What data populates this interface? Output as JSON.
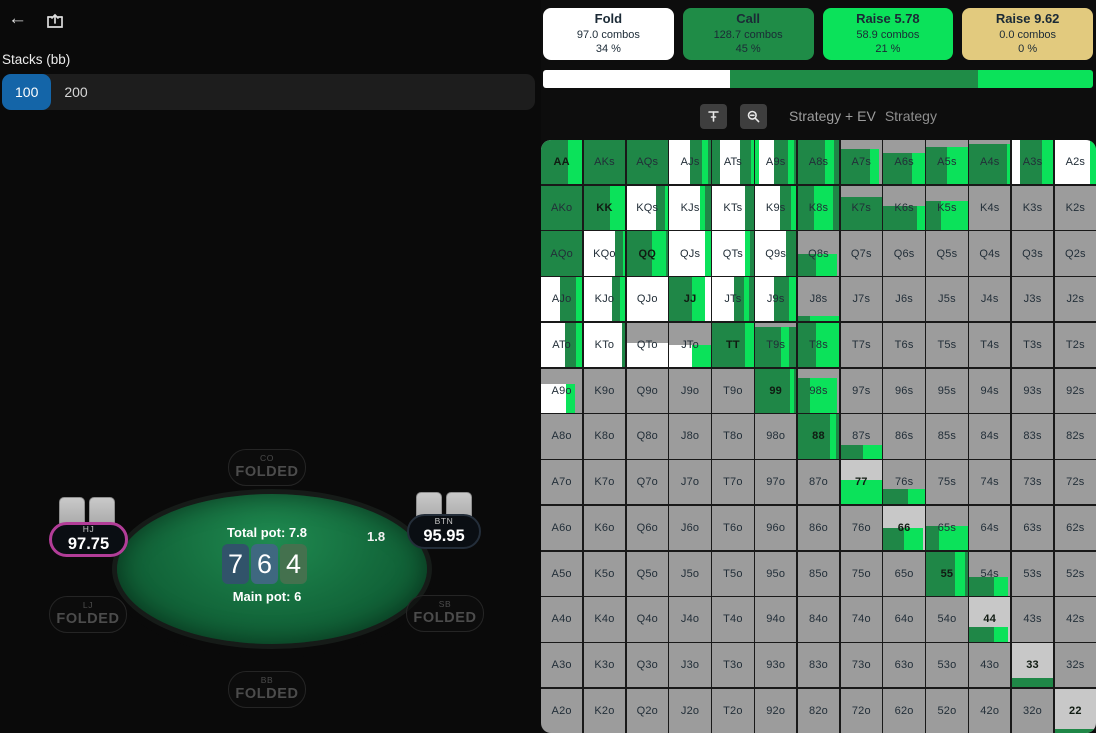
{
  "header": {
    "back_glyph": "←"
  },
  "sidebar": {
    "stacks_label": "Stacks (bb)",
    "stack_options": [
      {
        "label": "100",
        "selected": true
      },
      {
        "label": "200",
        "selected": false
      }
    ]
  },
  "table": {
    "total_pot": "Total pot: 7.8",
    "main_pot": "Main pot: 6",
    "bet": "1.8",
    "board": [
      {
        "rank": "7",
        "color": "#31536a"
      },
      {
        "rank": "6",
        "color": "#3f6880"
      },
      {
        "rank": "4",
        "color": "#44714e"
      }
    ],
    "players": [
      {
        "pos": "CO",
        "line2": "FOLDED",
        "type": "folded",
        "cards": false
      },
      {
        "pos": "HJ",
        "line2": "97.75",
        "type": "hero",
        "cards": true
      },
      {
        "pos": "BTN",
        "line2": "95.95",
        "type": "active",
        "cards": true
      },
      {
        "pos": "LJ",
        "line2": "FOLDED",
        "type": "folded",
        "cards": false
      },
      {
        "pos": "SB",
        "line2": "FOLDED",
        "type": "folded",
        "cards": false
      },
      {
        "pos": "BB",
        "line2": "FOLDED",
        "type": "folded",
        "cards": false
      }
    ]
  },
  "actions": [
    {
      "label": "Fold",
      "combos": "97.0 combos",
      "pct": "34 %",
      "bg": "#ffffff"
    },
    {
      "label": "Call",
      "combos": "128.7 combos",
      "pct": "45 %",
      "bg": "#1f8c47"
    },
    {
      "label": "Raise 5.78",
      "combos": "58.9 combos",
      "pct": "21 %",
      "bg": "#0be25a"
    },
    {
      "label": "Raise 9.62",
      "combos": "0.0 combos",
      "pct": "0 %",
      "bg": "#e2ca7e"
    }
  ],
  "strategy_bar": [
    {
      "color": "#ffffff",
      "pct": 34
    },
    {
      "color": "#1f8c47",
      "pct": 45
    },
    {
      "color": "#0be25a",
      "pct": 21
    }
  ],
  "toolbar": {
    "tabs": [
      {
        "label": "Strategy + EV",
        "active": false
      },
      {
        "label": "Strategy",
        "active": false
      }
    ]
  },
  "matrix": {
    "colors": {
      "f": "#ffffff",
      "c": "#1f8747",
      "r": "#0be25a",
      "g": ""
    },
    "empty_bg": "#9c9c9c",
    "pair_bg": "#c8c8c8",
    "cells": [
      [
        "AA",
        100,
        [
          [
            "c",
            66
          ],
          [
            "r",
            34
          ]
        ]
      ],
      [
        "AKs",
        100,
        [
          [
            "c",
            100
          ]
        ]
      ],
      [
        "AQs",
        100,
        [
          [
            "c",
            100
          ]
        ]
      ],
      [
        "AJs",
        100,
        [
          [
            "f",
            50
          ],
          [
            "c",
            28
          ],
          [
            "r",
            15
          ],
          [
            "c",
            7
          ]
        ]
      ],
      [
        "ATs",
        100,
        [
          [
            "c",
            20
          ],
          [
            "f",
            48
          ],
          [
            "c",
            26
          ],
          [
            "r",
            6
          ]
        ]
      ],
      [
        "A9s",
        100,
        [
          [
            "r",
            10
          ],
          [
            "f",
            37
          ],
          [
            "c",
            32
          ],
          [
            "r",
            16
          ],
          [
            "c",
            5
          ]
        ]
      ],
      [
        "A8s",
        100,
        [
          [
            "c",
            65
          ],
          [
            "r",
            23
          ],
          [
            "c",
            12
          ]
        ]
      ],
      [
        "A7s",
        80,
        [
          [
            "c",
            70
          ],
          [
            "r",
            22
          ],
          [
            "g",
            8
          ]
        ]
      ],
      [
        "A6s",
        70,
        [
          [
            "c",
            70
          ],
          [
            "r",
            30
          ]
        ]
      ],
      [
        "A5s",
        85,
        [
          [
            "c",
            50
          ],
          [
            "r",
            50
          ]
        ]
      ],
      [
        "A4s",
        90,
        [
          [
            "c",
            93
          ],
          [
            "r",
            7
          ]
        ]
      ],
      [
        "A3s",
        100,
        [
          [
            "f",
            20
          ],
          [
            "c",
            53
          ],
          [
            "r",
            27
          ]
        ]
      ],
      [
        "A2s",
        100,
        [
          [
            "f",
            85
          ],
          [
            "r",
            15
          ]
        ]
      ],
      [
        "AKo",
        100,
        [
          [
            "c",
            100
          ]
        ]
      ],
      [
        "KK",
        100,
        [
          [
            "c",
            64
          ],
          [
            "r",
            36
          ]
        ]
      ],
      [
        "KQs",
        100,
        [
          [
            "f",
            70
          ],
          [
            "c",
            22
          ],
          [
            "r",
            8
          ]
        ]
      ],
      [
        "KJs",
        100,
        [
          [
            "f",
            75
          ],
          [
            "r",
            12
          ],
          [
            "c",
            13
          ]
        ]
      ],
      [
        "KTs",
        100,
        [
          [
            "f",
            80
          ],
          [
            "c",
            20
          ]
        ]
      ],
      [
        "K9s",
        100,
        [
          [
            "f",
            60
          ],
          [
            "c",
            26
          ],
          [
            "r",
            14
          ]
        ]
      ],
      [
        "K8s",
        100,
        [
          [
            "c",
            40
          ],
          [
            "r",
            45
          ],
          [
            "c",
            15
          ]
        ]
      ],
      [
        "K7s",
        75,
        [
          [
            "c",
            100
          ]
        ]
      ],
      [
        "K6s",
        55,
        [
          [
            "c",
            80
          ],
          [
            "r",
            20
          ]
        ]
      ],
      [
        "K5s",
        65,
        [
          [
            "c",
            35
          ],
          [
            "r",
            65
          ]
        ]
      ],
      [
        "K4s",
        0,
        []
      ],
      [
        "K3s",
        0,
        []
      ],
      [
        "K2s",
        0,
        []
      ],
      [
        "AQo",
        100,
        [
          [
            "c",
            100
          ]
        ]
      ],
      [
        "KQo",
        100,
        [
          [
            "f",
            76
          ],
          [
            "c",
            19
          ],
          [
            "r",
            5
          ]
        ]
      ],
      [
        "QQ",
        100,
        [
          [
            "c",
            62
          ],
          [
            "r",
            33
          ],
          [
            "c",
            5
          ]
        ]
      ],
      [
        "QJs",
        100,
        [
          [
            "f",
            86
          ],
          [
            "r",
            14
          ]
        ]
      ],
      [
        "QTs",
        100,
        [
          [
            "f",
            80
          ],
          [
            "r",
            12
          ],
          [
            "c",
            8
          ]
        ]
      ],
      [
        "Q9s",
        100,
        [
          [
            "f",
            74
          ],
          [
            "c",
            26
          ]
        ]
      ],
      [
        "Q8s",
        50,
        [
          [
            "c",
            45
          ],
          [
            "r",
            50
          ],
          [
            "g",
            5
          ]
        ]
      ],
      [
        "Q7s",
        0,
        []
      ],
      [
        "Q6s",
        0,
        []
      ],
      [
        "Q5s",
        0,
        []
      ],
      [
        "Q4s",
        0,
        []
      ],
      [
        "Q3s",
        0,
        []
      ],
      [
        "Q2s",
        0,
        []
      ],
      [
        "AJo",
        100,
        [
          [
            "f",
            47
          ],
          [
            "c",
            37
          ],
          [
            "r",
            16
          ]
        ]
      ],
      [
        "KJo",
        100,
        [
          [
            "f",
            68
          ],
          [
            "c",
            20
          ],
          [
            "r",
            12
          ]
        ]
      ],
      [
        "QJo",
        100,
        [
          [
            "f",
            100
          ]
        ]
      ],
      [
        "JJ",
        100,
        [
          [
            "c",
            55
          ],
          [
            "r",
            30
          ],
          [
            "f",
            15
          ]
        ]
      ],
      [
        "JTs",
        100,
        [
          [
            "f",
            53
          ],
          [
            "c",
            23
          ],
          [
            "r",
            12
          ],
          [
            "c",
            12
          ]
        ]
      ],
      [
        "J9s",
        100,
        [
          [
            "f",
            47
          ],
          [
            "c",
            35
          ],
          [
            "r",
            18
          ]
        ]
      ],
      [
        "J8s",
        12,
        [
          [
            "c",
            30
          ],
          [
            "r",
            70
          ]
        ]
      ],
      [
        "J7s",
        0,
        []
      ],
      [
        "J6s",
        0,
        []
      ],
      [
        "J5s",
        0,
        []
      ],
      [
        "J4s",
        0,
        []
      ],
      [
        "J3s",
        0,
        []
      ],
      [
        "J2s",
        0,
        []
      ],
      [
        "ATo",
        100,
        [
          [
            "f",
            58
          ],
          [
            "c",
            26
          ],
          [
            "r",
            16
          ]
        ]
      ],
      [
        "KTo",
        100,
        [
          [
            "f",
            93
          ],
          [
            "c",
            7
          ]
        ]
      ],
      [
        "QTo",
        55,
        [
          [
            "f",
            100
          ]
        ]
      ],
      [
        "JTo",
        50,
        [
          [
            "f",
            55
          ],
          [
            "r",
            45
          ]
        ]
      ],
      [
        "TT",
        100,
        [
          [
            "c",
            80
          ],
          [
            "r",
            20
          ]
        ]
      ],
      [
        "T9s",
        90,
        [
          [
            "c",
            62
          ],
          [
            "r",
            20
          ],
          [
            "c",
            18
          ]
        ]
      ],
      [
        "T8s",
        100,
        [
          [
            "c",
            45
          ],
          [
            "r",
            55
          ]
        ]
      ],
      [
        "T7s",
        0,
        []
      ],
      [
        "T6s",
        0,
        []
      ],
      [
        "T5s",
        0,
        []
      ],
      [
        "T4s",
        0,
        []
      ],
      [
        "T3s",
        0,
        []
      ],
      [
        "T2s",
        0,
        []
      ],
      [
        "A9o",
        65,
        [
          [
            "f",
            60
          ],
          [
            "r",
            22
          ],
          [
            "g",
            18
          ]
        ]
      ],
      [
        "K9o",
        0,
        []
      ],
      [
        "Q9o",
        0,
        []
      ],
      [
        "J9o",
        0,
        []
      ],
      [
        "T9o",
        0,
        []
      ],
      [
        "99",
        100,
        [
          [
            "c",
            85
          ],
          [
            "r",
            10
          ],
          [
            "c",
            5
          ]
        ]
      ],
      [
        "98s",
        78,
        [
          [
            "c",
            30
          ],
          [
            "r",
            65
          ],
          [
            "g",
            5
          ]
        ]
      ],
      [
        "97s",
        0,
        []
      ],
      [
        "96s",
        0,
        []
      ],
      [
        "95s",
        0,
        []
      ],
      [
        "94s",
        0,
        []
      ],
      [
        "93s",
        0,
        []
      ],
      [
        "92s",
        0,
        []
      ],
      [
        "A8o",
        0,
        []
      ],
      [
        "K8o",
        0,
        []
      ],
      [
        "Q8o",
        0,
        []
      ],
      [
        "J8o",
        0,
        []
      ],
      [
        "T8o",
        0,
        []
      ],
      [
        "98o",
        0,
        []
      ],
      [
        "88",
        100,
        [
          [
            "c",
            78
          ],
          [
            "r",
            15
          ],
          [
            "c",
            7
          ]
        ]
      ],
      [
        "87s",
        30,
        [
          [
            "c",
            55
          ],
          [
            "r",
            45
          ]
        ]
      ],
      [
        "86s",
        0,
        []
      ],
      [
        "85s",
        0,
        []
      ],
      [
        "84s",
        0,
        []
      ],
      [
        "83s",
        0,
        []
      ],
      [
        "82s",
        0,
        []
      ],
      [
        "A7o",
        0,
        []
      ],
      [
        "K7o",
        0,
        []
      ],
      [
        "Q7o",
        0,
        []
      ],
      [
        "J7o",
        0,
        []
      ],
      [
        "T7o",
        0,
        []
      ],
      [
        "97o",
        0,
        []
      ],
      [
        "87o",
        0,
        []
      ],
      [
        "77",
        55,
        [
          [
            "r",
            100
          ]
        ]
      ],
      [
        "76s",
        35,
        [
          [
            "c",
            60
          ],
          [
            "r",
            40
          ]
        ]
      ],
      [
        "75s",
        0,
        []
      ],
      [
        "74s",
        0,
        []
      ],
      [
        "73s",
        0,
        []
      ],
      [
        "72s",
        0,
        []
      ],
      [
        "A6o",
        0,
        []
      ],
      [
        "K6o",
        0,
        []
      ],
      [
        "Q6o",
        0,
        []
      ],
      [
        "J6o",
        0,
        []
      ],
      [
        "T6o",
        0,
        []
      ],
      [
        "96o",
        0,
        []
      ],
      [
        "86o",
        0,
        []
      ],
      [
        "76o",
        0,
        []
      ],
      [
        "66",
        50,
        [
          [
            "c",
            50
          ],
          [
            "r",
            45
          ],
          [
            "g",
            5
          ]
        ]
      ],
      [
        "65s",
        55,
        [
          [
            "c",
            32
          ],
          [
            "r",
            68
          ]
        ]
      ],
      [
        "64s",
        0,
        []
      ],
      [
        "63s",
        0,
        []
      ],
      [
        "62s",
        0,
        []
      ],
      [
        "A5o",
        0,
        []
      ],
      [
        "K5o",
        0,
        []
      ],
      [
        "Q5o",
        0,
        []
      ],
      [
        "J5o",
        0,
        []
      ],
      [
        "T5o",
        0,
        []
      ],
      [
        "95o",
        0,
        []
      ],
      [
        "85o",
        0,
        []
      ],
      [
        "75o",
        0,
        []
      ],
      [
        "65o",
        0,
        []
      ],
      [
        "55",
        100,
        [
          [
            "c",
            70
          ],
          [
            "r",
            24
          ],
          [
            "c",
            6
          ]
        ]
      ],
      [
        "54s",
        42,
        [
          [
            "c",
            60
          ],
          [
            "r",
            35
          ],
          [
            "g",
            5
          ]
        ]
      ],
      [
        "53s",
        0,
        []
      ],
      [
        "52s",
        0,
        []
      ],
      [
        "A4o",
        0,
        []
      ],
      [
        "K4o",
        0,
        []
      ],
      [
        "Q4o",
        0,
        []
      ],
      [
        "J4o",
        0,
        []
      ],
      [
        "T4o",
        0,
        []
      ],
      [
        "94o",
        0,
        []
      ],
      [
        "84o",
        0,
        []
      ],
      [
        "74o",
        0,
        []
      ],
      [
        "64o",
        0,
        []
      ],
      [
        "54o",
        0,
        []
      ],
      [
        "44",
        34,
        [
          [
            "c",
            60
          ],
          [
            "r",
            35
          ],
          [
            "g",
            5
          ]
        ]
      ],
      [
        "43s",
        0,
        []
      ],
      [
        "42s",
        0,
        []
      ],
      [
        "A3o",
        0,
        []
      ],
      [
        "K3o",
        0,
        []
      ],
      [
        "Q3o",
        0,
        []
      ],
      [
        "J3o",
        0,
        []
      ],
      [
        "T3o",
        0,
        []
      ],
      [
        "93o",
        0,
        []
      ],
      [
        "83o",
        0,
        []
      ],
      [
        "73o",
        0,
        []
      ],
      [
        "63o",
        0,
        []
      ],
      [
        "53o",
        0,
        []
      ],
      [
        "43o",
        0,
        []
      ],
      [
        "33",
        20,
        [
          [
            "c",
            100
          ]
        ]
      ],
      [
        "32s",
        0,
        []
      ],
      [
        "A2o",
        0,
        []
      ],
      [
        "K2o",
        0,
        []
      ],
      [
        "Q2o",
        0,
        []
      ],
      [
        "J2o",
        0,
        []
      ],
      [
        "T2o",
        0,
        []
      ],
      [
        "92o",
        0,
        []
      ],
      [
        "82o",
        0,
        []
      ],
      [
        "72o",
        0,
        []
      ],
      [
        "62o",
        0,
        []
      ],
      [
        "52o",
        0,
        []
      ],
      [
        "42o",
        0,
        []
      ],
      [
        "32o",
        0,
        []
      ],
      [
        "22",
        8,
        [
          [
            "c",
            100
          ]
        ]
      ]
    ]
  }
}
